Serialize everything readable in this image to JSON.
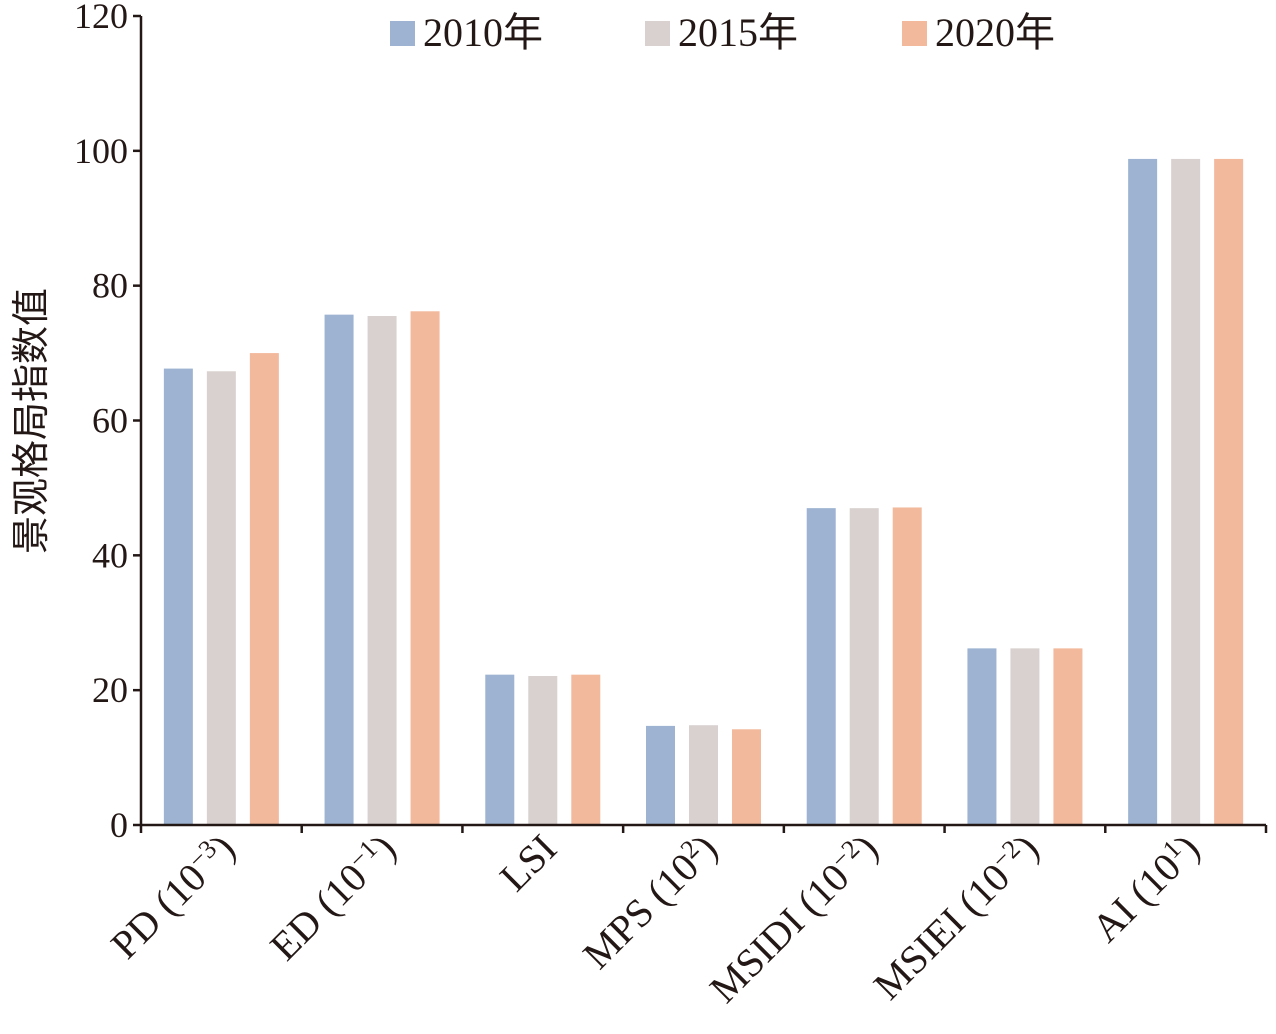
{
  "chart_data": {
    "type": "bar",
    "ylabel": "景观格局指数值",
    "xlabel": "",
    "ylim": [
      0,
      120
    ],
    "yticks": [
      "0",
      "20",
      "40",
      "60",
      "80",
      "100",
      "120"
    ],
    "categories": [
      {
        "base": "PD (10",
        "sup": "−3",
        "tail": ")"
      },
      {
        "base": "ED (10",
        "sup": "−1",
        "tail": ")"
      },
      {
        "base": "LSI",
        "sup": "",
        "tail": ""
      },
      {
        "base": "MPS (10",
        "sup": "2",
        "tail": ")"
      },
      {
        "base": "MSIDI (10",
        "sup": "−2",
        "tail": ")"
      },
      {
        "base": "MSIEI (10",
        "sup": "−2",
        "tail": ")"
      },
      {
        "base": "AI (10",
        "sup": "1",
        "tail": ")"
      }
    ],
    "series": [
      {
        "name": "2010年",
        "color": "#9db3d1",
        "values": [
          67.7,
          75.7,
          22.3,
          14.7,
          47.0,
          26.2,
          98.8
        ]
      },
      {
        "name": "2015年",
        "color": "#d8d1cf",
        "values": [
          67.3,
          75.5,
          22.1,
          14.8,
          47.0,
          26.2,
          98.8
        ]
      },
      {
        "name": "2020年",
        "color": "#f2b99c",
        "values": [
          70.0,
          76.2,
          22.3,
          14.2,
          47.1,
          26.2,
          98.8
        ]
      }
    ],
    "legend_position": "top",
    "grid": false
  }
}
